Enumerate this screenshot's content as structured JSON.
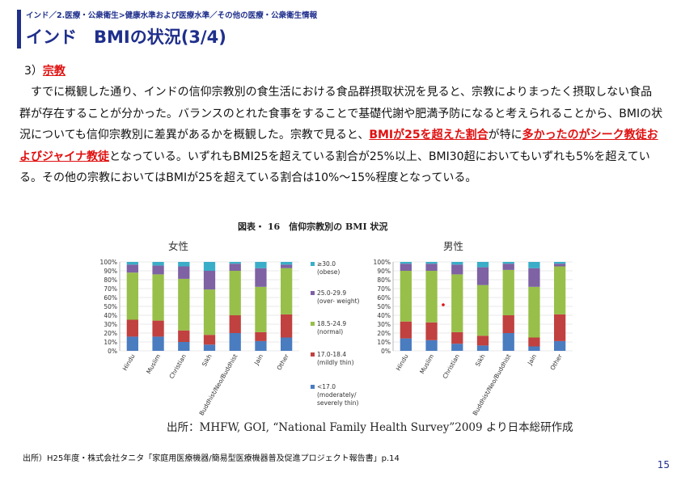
{
  "header": {
    "breadcrumb": "インド／2.医療・公衆衛生>健康水準および医療水準／その他の医療・公衆衛生情報",
    "title": "インド　BMIの状況(3/4)",
    "accent_color": "#1f2f8c"
  },
  "section": {
    "number": "3）",
    "label": "宗教"
  },
  "body": {
    "p1": "　すでに概観した通り、インドの信仰宗教別の食生活における食品群摂取状況を見ると、宗教によりまったく摂取しない食品群が存在することが分かった。バランスのとれた食事をすることで基礎代謝や肥満予防になると考えられることから、BMIの状況についても信仰宗教別に差異があるかを概観した。宗教で見ると、",
    "hl1": "BMIが25を超えた割合",
    "p2": "が特に",
    "hl2": "多かったのがシーク教徒およびジャイナ教徒",
    "p3": "となっている。いずれもBMI25を超えている割合が25%以上、BMI30超においてもいずれも5%を超えている。その他の宗教においてはBMIが25を超えている割合は10%～15%程度となっている。",
    "highlight_color": "#e01010"
  },
  "figure": {
    "title": "図表・ 16　信仰宗教別の BMI 状況",
    "source": "出所：MHFW, GOI, “National Family Health Survey”2009 より日本総研作成",
    "female_label": "女性",
    "male_label": "男性"
  },
  "chart_data": [
    {
      "type": "bar",
      "stacked": true,
      "panel": "女性",
      "categories": [
        "Hindu",
        "Muslim",
        "Christian",
        "Sikh",
        "Buddhist/Neo/Buddhist",
        "Jain",
        "Other"
      ],
      "yticks": [
        "0%",
        "10%",
        "20%",
        "30%",
        "40%",
        "50%",
        "60%",
        "70%",
        "80%",
        "90%",
        "100%"
      ],
      "ylim": [
        0,
        100
      ],
      "series": [
        {
          "name": "<17.0 (moderately/ severely thin)",
          "color": "#4a7cc0",
          "values": [
            16,
            16,
            10,
            7,
            20,
            11,
            15
          ]
        },
        {
          "name": "17.0-18.4 (mildly thin)",
          "color": "#c0413f",
          "values": [
            19,
            18,
            13,
            11,
            20,
            10,
            26
          ]
        },
        {
          "name": "18.5-24.9 (normal)",
          "color": "#98bf4a",
          "values": [
            53,
            52,
            58,
            51,
            50,
            51,
            52
          ]
        },
        {
          "name": "25.0-29.9 (over- weight)",
          "color": "#7e62a3",
          "values": [
            9,
            10,
            14,
            21,
            8,
            21,
            4
          ]
        },
        {
          "name": "≥30.0 (obese)",
          "color": "#3aaec8",
          "values": [
            3,
            4,
            5,
            10,
            2,
            7,
            3
          ]
        }
      ]
    },
    {
      "type": "bar",
      "stacked": true,
      "panel": "男性",
      "categories": [
        "Hindu",
        "Muslim",
        "Christian",
        "Sikh",
        "Buddhist/Neo/Buddhist",
        "Jain",
        "Other"
      ],
      "yticks": [
        "0%",
        "10%",
        "20%",
        "30%",
        "40%",
        "50%",
        "60%",
        "70%",
        "80%",
        "90%",
        "100%"
      ],
      "ylim": [
        0,
        100
      ],
      "series": [
        {
          "name": "<17.0",
          "color": "#4a7cc0",
          "values": [
            14,
            12,
            8,
            6,
            20,
            5,
            11
          ]
        },
        {
          "name": "17.0-18.4",
          "color": "#c0413f",
          "values": [
            19,
            20,
            13,
            11,
            20,
            10,
            30
          ]
        },
        {
          "name": "18.5-24.9",
          "color": "#98bf4a",
          "values": [
            57,
            58,
            65,
            57,
            51,
            57,
            54
          ]
        },
        {
          "name": "25.0-29.9",
          "color": "#7e62a3",
          "values": [
            8,
            8,
            11,
            20,
            7,
            21,
            3
          ]
        },
        {
          "name": "≥30.0",
          "color": "#3aaec8",
          "values": [
            2,
            2,
            3,
            6,
            2,
            7,
            2
          ]
        }
      ]
    }
  ],
  "footer": {
    "note": "出所）H25年度・株式会社タニタ「家庭用医療機器/簡易型医療機器普及促進プロジェクト報告書」p.14",
    "page": "15"
  }
}
